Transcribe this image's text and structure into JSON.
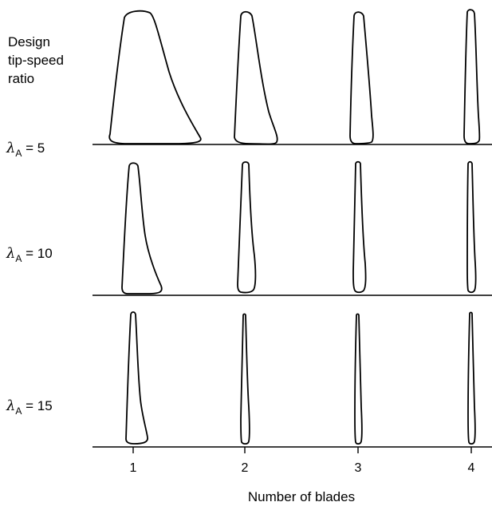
{
  "heading": {
    "lines": [
      "Design",
      "tip-speed",
      "ratio"
    ]
  },
  "rows": [
    {
      "symbol": "λ",
      "subscript": "A",
      "equals": " = 5",
      "value": 5
    },
    {
      "symbol": "λ",
      "subscript": "A",
      "equals": " = 10",
      "value": 10
    },
    {
      "symbol": "λ",
      "subscript": "A",
      "equals": " = 15",
      "value": 15
    }
  ],
  "x_axis": {
    "ticks": [
      "1",
      "2",
      "3",
      "4"
    ],
    "label": "Number of blades"
  },
  "colors": {
    "ink": "#000000",
    "background": "#ffffff"
  }
}
